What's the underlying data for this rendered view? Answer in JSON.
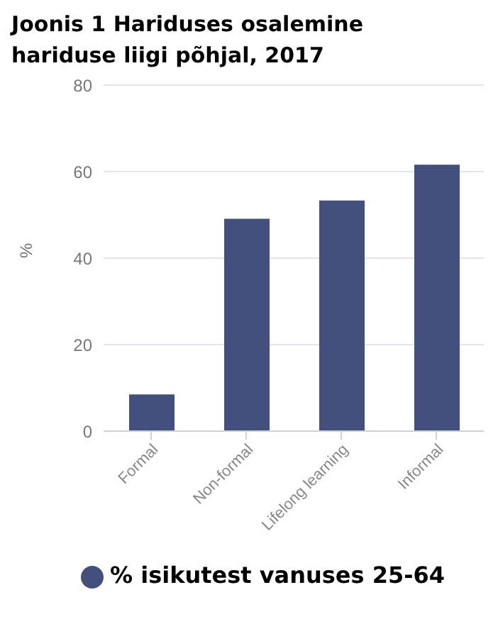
{
  "chart_data": {
    "type": "bar",
    "title": "Joonis 1 Hariduses osalemine hariduse liigi põhjal, 2017",
    "ylabel": "%",
    "categories": [
      "Formal",
      "Non-formal",
      "Lifelong learning",
      "Informal"
    ],
    "series": [
      {
        "name": "% isikutest vanuses 25-64",
        "color": "#434f7c",
        "values": [
          8.5,
          49.1,
          53.3,
          61.6
        ]
      }
    ],
    "ylim": [
      0,
      80
    ],
    "yticks": [
      0,
      20,
      40,
      60,
      80
    ],
    "grid": "y",
    "legend": "bottom"
  }
}
